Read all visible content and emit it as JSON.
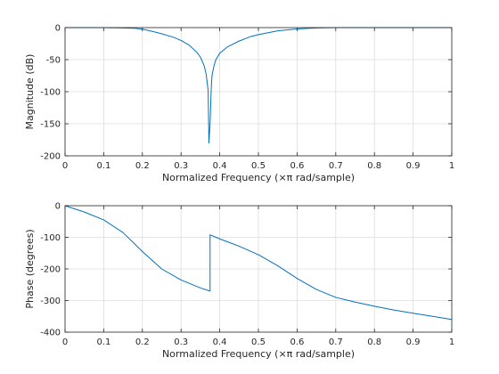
{
  "chart_data": [
    {
      "type": "line",
      "title": "",
      "xlabel": "Normalized Frequency  (×π rad/sample)",
      "ylabel": "Magnitude (dB)",
      "xlim": [
        0,
        1
      ],
      "ylim": [
        -200,
        0
      ],
      "xticks": [
        "0",
        "0.1",
        "0.2",
        "0.3",
        "0.4",
        "0.5",
        "0.6",
        "0.7",
        "0.8",
        "0.9",
        "1"
      ],
      "yticks": [
        "0",
        "-50",
        "-100",
        "-150",
        "-200"
      ],
      "grid": true,
      "series": [
        {
          "color": "#0072bd",
          "x": [
            0,
            0.05,
            0.1,
            0.15,
            0.18,
            0.2,
            0.22,
            0.25,
            0.28,
            0.3,
            0.32,
            0.34,
            0.35,
            0.36,
            0.365,
            0.37,
            0.372,
            0.375,
            0.378,
            0.38,
            0.385,
            0.39,
            0.4,
            0.42,
            0.45,
            0.48,
            0.5,
            0.55,
            0.6,
            0.65,
            0.7,
            0.8,
            0.9,
            1.0
          ],
          "y": [
            0,
            0,
            0,
            -0.5,
            -1,
            -2.5,
            -5,
            -9.5,
            -15,
            -20,
            -27,
            -38,
            -46,
            -60,
            -73,
            -98,
            -180,
            -150,
            -95,
            -75,
            -60,
            -50,
            -40,
            -30,
            -21,
            -14,
            -11,
            -5,
            -2,
            -0.5,
            0,
            0,
            0,
            0
          ]
        }
      ]
    },
    {
      "type": "line",
      "title": "",
      "xlabel": "Normalized Frequency  (×π rad/sample)",
      "ylabel": "Phase (degrees)",
      "xlim": [
        0,
        1
      ],
      "ylim": [
        -400,
        0
      ],
      "xticks": [
        "0",
        "0.1",
        "0.2",
        "0.3",
        "0.4",
        "0.5",
        "0.6",
        "0.7",
        "0.8",
        "0.9",
        "1"
      ],
      "yticks": [
        "0",
        "-100",
        "-200",
        "-300",
        "-400"
      ],
      "grid": true,
      "series": [
        {
          "color": "#0072bd",
          "x": [
            0,
            0.05,
            0.1,
            0.15,
            0.2,
            0.25,
            0.3,
            0.35,
            0.375,
            0.375,
            0.4,
            0.45,
            0.5,
            0.55,
            0.6,
            0.65,
            0.7,
            0.75,
            0.8,
            0.85,
            0.9,
            0.95,
            1.0
          ],
          "y": [
            0,
            -20,
            -45,
            -85,
            -145,
            -200,
            -235,
            -260,
            -270,
            -92,
            -105,
            -128,
            -155,
            -190,
            -230,
            -265,
            -290,
            -305,
            -318,
            -330,
            -340,
            -350,
            -360
          ]
        }
      ]
    }
  ]
}
